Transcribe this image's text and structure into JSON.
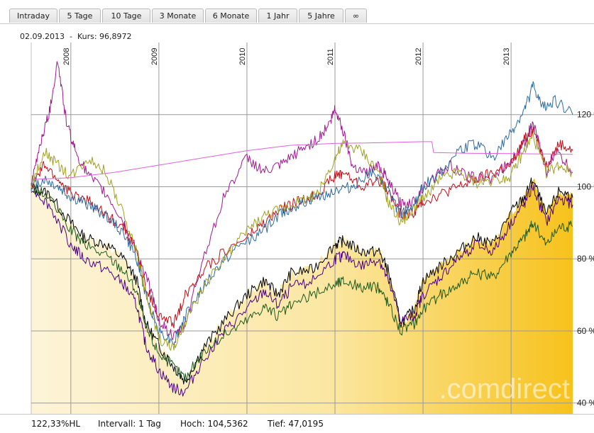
{
  "tabs": [
    {
      "label": "Intraday",
      "name": "tab-intraday"
    },
    {
      "label": "5 Tage",
      "name": "tab-5-tage"
    },
    {
      "label": "10 Tage",
      "name": "tab-10-tage"
    },
    {
      "label": "3 Monate",
      "name": "tab-3-monate"
    },
    {
      "label": "6 Monate",
      "name": "tab-6-monate"
    },
    {
      "label": "1 Jahr",
      "name": "tab-1-jahr"
    },
    {
      "label": "5 Jahre",
      "name": "tab-5-jahre"
    },
    {
      "label": "∞",
      "name": "tab-max"
    }
  ],
  "info": {
    "date": "02.09.2013",
    "sep": "-",
    "kurs": "Kurs: 96,8972"
  },
  "footer": {
    "mode": "122,33%HL",
    "interval": "Intervall: 1 Tag",
    "high": "Hoch: 104,5362",
    "low": "Tief: 47,0195"
  },
  "watermark": ".comdirect",
  "chart_data": {
    "type": "line",
    "title": "",
    "xlabel": "",
    "ylabel": "",
    "x_range": [
      2007.55,
      2013.7
    ],
    "ylim": [
      37,
      140
    ],
    "x_ticks": [
      {
        "label": "2008",
        "value": 2008.0
      },
      {
        "label": "2009",
        "value": 2009.0
      },
      {
        "label": "2010",
        "value": 2010.0
      },
      {
        "label": "2011",
        "value": 2011.0
      },
      {
        "label": "2012",
        "value": 2012.0
      },
      {
        "label": "2013",
        "value": 2013.0
      }
    ],
    "y_ticks": [
      {
        "label": "120 %",
        "value": 120
      },
      {
        "label": "100 %",
        "value": 100
      },
      {
        "label": "80 %",
        "value": 80
      },
      {
        "label": "60 %",
        "value": 60
      },
      {
        "label": "40 %",
        "value": 40
      }
    ],
    "grid": true,
    "series": [
      {
        "name": "Basis (gefüllt)",
        "color": "#000000",
        "fill": true,
        "x": [
          2007.55,
          2007.75,
          2008.0,
          2008.15,
          2008.4,
          2008.6,
          2008.75,
          2008.85,
          2009.0,
          2009.17,
          2009.3,
          2009.5,
          2009.75,
          2010.0,
          2010.2,
          2010.35,
          2010.5,
          2010.75,
          2011.0,
          2011.1,
          2011.3,
          2011.5,
          2011.6,
          2011.75,
          2011.9,
          2012.0,
          2012.2,
          2012.4,
          2012.6,
          2012.8,
          2013.0,
          2013.15,
          2013.25,
          2013.4,
          2013.55,
          2013.7
        ],
        "values": [
          100,
          98,
          90,
          86,
          84,
          80,
          74,
          62,
          56,
          50,
          46,
          55,
          63,
          70,
          74,
          70,
          76,
          77,
          84,
          85,
          82,
          82,
          77,
          62,
          66,
          74,
          78,
          82,
          86,
          84,
          93,
          97,
          102,
          92,
          99,
          97
        ]
      },
      {
        "name": "Violett",
        "color": "#4b0082",
        "x": [
          2007.55,
          2007.75,
          2008.0,
          2008.15,
          2008.4,
          2008.6,
          2008.75,
          2008.85,
          2009.0,
          2009.17,
          2009.3,
          2009.5,
          2009.75,
          2010.0,
          2010.2,
          2010.35,
          2010.5,
          2010.75,
          2011.0,
          2011.1,
          2011.3,
          2011.5,
          2011.6,
          2011.75,
          2011.9,
          2012.0,
          2012.2,
          2012.4,
          2012.6,
          2012.8,
          2013.0,
          2013.15,
          2013.25,
          2013.4,
          2013.55,
          2013.7
        ],
        "values": [
          100,
          95,
          84,
          80,
          77,
          73,
          67,
          56,
          49,
          44,
          43,
          52,
          60,
          66,
          71,
          67,
          72,
          74,
          80,
          81,
          78,
          80,
          74,
          63,
          64,
          70,
          75,
          80,
          84,
          82,
          90,
          95,
          100,
          90,
          97,
          95
        ]
      },
      {
        "name": "Grün",
        "color": "#1e5a1e",
        "x": [
          2007.55,
          2007.75,
          2008.0,
          2008.15,
          2008.4,
          2008.6,
          2008.75,
          2008.85,
          2009.0,
          2009.17,
          2009.3,
          2009.5,
          2009.75,
          2010.0,
          2010.2,
          2010.35,
          2010.5,
          2010.75,
          2011.0,
          2011.1,
          2011.3,
          2011.5,
          2011.6,
          2011.75,
          2011.9,
          2012.0,
          2012.2,
          2012.4,
          2012.6,
          2012.8,
          2013.0,
          2013.15,
          2013.25,
          2013.4,
          2013.55,
          2013.7
        ],
        "values": [
          100,
          97,
          88,
          84,
          81,
          77,
          71,
          61,
          54,
          50,
          47,
          54,
          59,
          63,
          67,
          64,
          67,
          70,
          73,
          74,
          72,
          72,
          68,
          60,
          62,
          66,
          70,
          73,
          76,
          75,
          82,
          86,
          90,
          84,
          89,
          89
        ]
      },
      {
        "name": "Magenta",
        "color": "#a01890",
        "x": [
          2007.55,
          2007.65,
          2007.75,
          2007.85,
          2007.95,
          2008.05,
          2008.2,
          2008.4,
          2008.6,
          2008.75,
          2008.9,
          2009.0,
          2009.17,
          2009.3,
          2009.5,
          2009.75,
          2010.0,
          2010.2,
          2010.4,
          2010.6,
          2010.8,
          2010.95,
          2011.0,
          2011.1,
          2011.2,
          2011.35,
          2011.5,
          2011.6,
          2011.75,
          2011.9,
          2012.0,
          2012.3,
          2012.5,
          2012.75,
          2013.0,
          2013.15,
          2013.25,
          2013.4,
          2013.5,
          2013.7
        ],
        "values": [
          100,
          112,
          120,
          135,
          118,
          110,
          103,
          98,
          90,
          82,
          72,
          63,
          58,
          62,
          80,
          98,
          108,
          104,
          106,
          110,
          113,
          118,
          122,
          115,
          106,
          104,
          106,
          102,
          95,
          96,
          100,
          106,
          103,
          102,
          107,
          112,
          118,
          104,
          110,
          104
        ]
      },
      {
        "name": "Rot",
        "color": "#c0101a",
        "x": [
          2007.55,
          2007.7,
          2007.85,
          2008.0,
          2008.2,
          2008.4,
          2008.6,
          2008.75,
          2008.85,
          2009.0,
          2009.17,
          2009.3,
          2009.5,
          2009.75,
          2010.0,
          2010.2,
          2010.4,
          2010.6,
          2010.8,
          2011.0,
          2011.1,
          2011.3,
          2011.5,
          2011.6,
          2011.75,
          2011.9,
          2012.0,
          2012.2,
          2012.4,
          2012.6,
          2012.8,
          2013.0,
          2013.15,
          2013.25,
          2013.4,
          2013.55,
          2013.7
        ],
        "values": [
          100,
          106,
          102,
          98,
          96,
          92,
          89,
          82,
          72,
          64,
          62,
          70,
          77,
          82,
          86,
          90,
          94,
          96,
          98,
          103,
          104,
          100,
          102,
          99,
          92,
          93,
          96,
          98,
          100,
          102,
          104,
          106,
          113,
          116,
          106,
          112,
          110
        ]
      },
      {
        "name": "Blau",
        "color": "#2e6aa0",
        "x": [
          2007.55,
          2007.7,
          2007.85,
          2008.0,
          2008.2,
          2008.4,
          2008.6,
          2008.75,
          2008.85,
          2009.0,
          2009.17,
          2009.3,
          2009.5,
          2009.75,
          2010.0,
          2010.2,
          2010.4,
          2010.6,
          2010.8,
          2011.0,
          2011.2,
          2011.4,
          2011.6,
          2011.75,
          2011.9,
          2012.0,
          2012.2,
          2012.4,
          2012.6,
          2012.8,
          2013.0,
          2013.15,
          2013.25,
          2013.35,
          2013.5,
          2013.7
        ],
        "values": [
          100,
          102,
          100,
          97,
          95,
          92,
          87,
          80,
          70,
          60,
          57,
          64,
          72,
          80,
          85,
          88,
          93,
          95,
          97,
          99,
          100,
          104,
          99,
          92,
          95,
          100,
          104,
          110,
          112,
          108,
          115,
          121,
          128,
          122,
          124,
          120
        ]
      },
      {
        "name": "Oliv",
        "color": "#a0a020",
        "x": [
          2007.55,
          2007.7,
          2007.85,
          2008.0,
          2008.2,
          2008.4,
          2008.6,
          2008.75,
          2008.85,
          2009.0,
          2009.17,
          2009.3,
          2009.5,
          2009.75,
          2010.0,
          2010.2,
          2010.4,
          2010.6,
          2010.8,
          2011.0,
          2011.1,
          2011.3,
          2011.5,
          2011.6,
          2011.75,
          2011.9,
          2012.0,
          2012.2,
          2012.4,
          2012.6,
          2012.8,
          2013.0,
          2013.15,
          2013.25,
          2013.4,
          2013.55,
          2013.7
        ],
        "values": [
          100,
          110,
          106,
          103,
          108,
          104,
          92,
          82,
          70,
          58,
          55,
          62,
          72,
          80,
          88,
          92,
          94,
          96,
          98,
          108,
          112,
          110,
          104,
          96,
          90,
          94,
          97,
          102,
          104,
          101,
          102,
          103,
          110,
          114,
          104,
          106,
          104
        ]
      },
      {
        "name": "Pink (Anleihe)",
        "color": "#e060e0",
        "x": [
          2007.55,
          2008.0,
          2008.5,
          2009.0,
          2009.5,
          2010.0,
          2010.5,
          2011.0,
          2011.5,
          2012.0,
          2012.1,
          2012.12,
          2012.5,
          2013.0,
          2013.7
        ],
        "values": [
          102,
          102.5,
          104,
          106,
          108,
          110,
          111.5,
          112,
          112.2,
          112.5,
          112.5,
          109.5,
          109.3,
          109.2,
          109
        ]
      }
    ]
  }
}
